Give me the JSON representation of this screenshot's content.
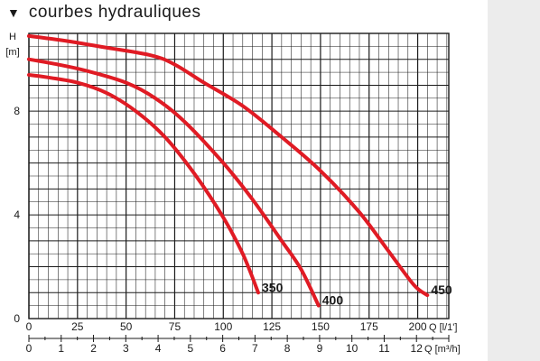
{
  "title": {
    "marker": "▼",
    "text": "courbes hydrauliques"
  },
  "chart_data": {
    "type": "line",
    "y_axis": {
      "unit_label": "H",
      "unit": "[m]",
      "min": 0,
      "max": 11,
      "ticks": [
        0,
        4,
        8
      ]
    },
    "x_axis_primary": {
      "label": "Q [l/1']",
      "min": 0,
      "max": 216,
      "ticks": [
        0,
        25,
        50,
        75,
        100,
        125,
        150,
        175,
        200
      ]
    },
    "x_axis_secondary": {
      "label": "Q [m³/h]",
      "min": 0,
      "max": 13,
      "ticks": [
        0,
        1,
        2,
        3,
        4,
        5,
        6,
        7,
        8,
        9,
        10,
        11,
        12
      ]
    },
    "grid": true,
    "series_color": "#e01b24",
    "series": [
      {
        "name": "350",
        "points": [
          [
            0,
            9.4
          ],
          [
            10,
            9.3
          ],
          [
            25,
            9.1
          ],
          [
            40,
            8.7
          ],
          [
            55,
            8.0
          ],
          [
            70,
            7.0
          ],
          [
            85,
            5.6
          ],
          [
            100,
            3.9
          ],
          [
            110,
            2.5
          ],
          [
            118,
            1.0
          ]
        ]
      },
      {
        "name": "400",
        "points": [
          [
            0,
            10.0
          ],
          [
            15,
            9.8
          ],
          [
            30,
            9.55
          ],
          [
            50,
            9.1
          ],
          [
            65,
            8.5
          ],
          [
            80,
            7.6
          ],
          [
            100,
            6.0
          ],
          [
            115,
            4.6
          ],
          [
            130,
            3.0
          ],
          [
            140,
            1.9
          ],
          [
            149,
            0.5
          ]
        ]
      },
      {
        "name": "450",
        "points": [
          [
            0,
            10.9
          ],
          [
            20,
            10.7
          ],
          [
            40,
            10.45
          ],
          [
            63,
            10.15
          ],
          [
            75,
            9.8
          ],
          [
            90,
            9.1
          ],
          [
            110,
            8.2
          ],
          [
            130,
            7.0
          ],
          [
            150,
            5.7
          ],
          [
            170,
            4.1
          ],
          [
            185,
            2.6
          ],
          [
            198,
            1.3
          ],
          [
            205,
            0.9
          ]
        ]
      }
    ]
  }
}
